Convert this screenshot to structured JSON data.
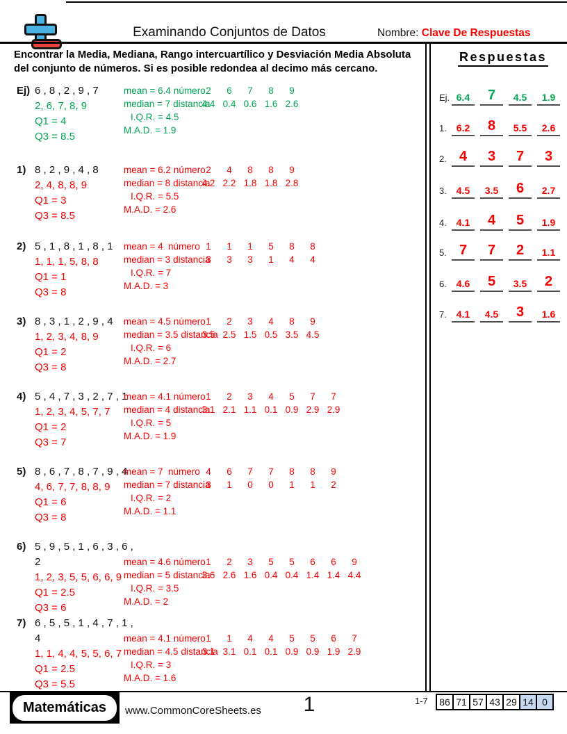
{
  "header": {
    "title": "Examinando Conjuntos de Datos",
    "name_label": "Nombre:",
    "name_value": "Clave De Respuestas"
  },
  "instructions": "Encontrar la Media, Mediana, Rango intercuartílico y Desviación Media Absoluta del conjunto de números. Si es posible redondea al decimo más cercano.",
  "colors": {
    "example_green": "#00a651",
    "answer_red": "#f60000",
    "score_highlight_blue": "#c6d9f1"
  },
  "answers_panel": {
    "title": "Respuestas",
    "rows": [
      {
        "label": "Ej.",
        "values": [
          "6.4",
          "7",
          "4.5",
          "1.9"
        ]
      },
      {
        "label": "1.",
        "values": [
          "6.2",
          "8",
          "5.5",
          "2.6"
        ]
      },
      {
        "label": "2.",
        "values": [
          "4",
          "3",
          "7",
          "3"
        ]
      },
      {
        "label": "3.",
        "values": [
          "4.5",
          "3.5",
          "6",
          "2.7"
        ]
      },
      {
        "label": "4.",
        "values": [
          "4.1",
          "4",
          "5",
          "1.9"
        ]
      },
      {
        "label": "5.",
        "values": [
          "7",
          "7",
          "2",
          "1.1"
        ]
      },
      {
        "label": "6.",
        "values": [
          "4.6",
          "5",
          "3.5",
          "2"
        ]
      },
      {
        "label": "7.",
        "values": [
          "4.1",
          "4.5",
          "3",
          "1.6"
        ]
      }
    ]
  },
  "problems": [
    {
      "label": "Ej)",
      "dataset": "6 , 8 , 2 , 9 , 7",
      "dataset2": "",
      "sorted": "2, 6, 7, 8, 9",
      "q1": "Q1 = 4",
      "q3": "Q3 = 8.5",
      "mean": "mean = 6.4",
      "median": "median = 7",
      "numero_label": "número",
      "distancia_label": "distancia",
      "numbers": [
        "2",
        "6",
        "7",
        "8",
        "9"
      ],
      "distances": [
        "4.4",
        "0.4",
        "0.6",
        "1.6",
        "2.6"
      ],
      "iqr": "I.Q.R. = 4.5",
      "mad": "M.A.D. = 1.9"
    },
    {
      "label": "1)",
      "dataset": "8 , 2 , 9 , 4 , 8",
      "dataset2": "",
      "sorted": "2, 4, 8, 8, 9",
      "q1": "Q1 = 3",
      "q3": "Q3 = 8.5",
      "mean": "mean = 6.2",
      "median": "median = 8",
      "numero_label": "número",
      "distancia_label": "distancia",
      "numbers": [
        "2",
        "4",
        "8",
        "8",
        "9"
      ],
      "distances": [
        "4.2",
        "2.2",
        "1.8",
        "1.8",
        "2.8"
      ],
      "iqr": "I.Q.R. = 5.5",
      "mad": "M.A.D. = 2.6"
    },
    {
      "label": "2)",
      "dataset": "5 , 1 , 8 , 1 , 8 , 1",
      "dataset2": "",
      "sorted": "1, 1, 1, 5, 8, 8",
      "q1": "Q1 = 1",
      "q3": "Q3 = 8",
      "mean": "mean = 4",
      "median": "median = 3",
      "numero_label": "número",
      "distancia_label": "distancia",
      "numbers": [
        "1",
        "1",
        "1",
        "5",
        "8",
        "8"
      ],
      "distances": [
        "3",
        "3",
        "3",
        "1",
        "4",
        "4"
      ],
      "iqr": "I.Q.R. = 7",
      "mad": "M.A.D. = 3"
    },
    {
      "label": "3)",
      "dataset": "8 , 3 , 1 , 2 , 9 , 4",
      "dataset2": "",
      "sorted": "1, 2, 3, 4, 8, 9",
      "q1": "Q1 = 2",
      "q3": "Q3 = 8",
      "mean": "mean = 4.5",
      "median": "median = 3.5",
      "numero_label": "número",
      "distancia_label": "distancia",
      "numbers": [
        "1",
        "2",
        "3",
        "4",
        "8",
        "9"
      ],
      "distances": [
        "3.5",
        "2.5",
        "1.5",
        "0.5",
        "3.5",
        "4.5"
      ],
      "iqr": "I.Q.R. = 6",
      "mad": "M.A.D. = 2.7"
    },
    {
      "label": "4)",
      "dataset": "5 , 4 , 7 , 3 , 2 , 7 , 1",
      "dataset2": "",
      "sorted": "1, 2, 3, 4, 5, 7, 7",
      "q1": "Q1 = 2",
      "q3": "Q3 = 7",
      "mean": "mean = 4.1",
      "median": "median = 4",
      "numero_label": "número",
      "distancia_label": "distancia",
      "numbers": [
        "1",
        "2",
        "3",
        "4",
        "5",
        "7",
        "7"
      ],
      "distances": [
        "3.1",
        "2.1",
        "1.1",
        "0.1",
        "0.9",
        "2.9",
        "2.9"
      ],
      "iqr": "I.Q.R. = 5",
      "mad": "M.A.D. = 1.9"
    },
    {
      "label": "5)",
      "dataset": "8 , 6 , 7 , 8 , 7 , 9 , 4",
      "dataset2": "",
      "sorted": "4, 6, 7, 7, 8, 8, 9",
      "q1": "Q1 = 6",
      "q3": "Q3 = 8",
      "mean": "mean = 7",
      "median": "median = 7",
      "numero_label": "número",
      "distancia_label": "distancia",
      "numbers": [
        "4",
        "6",
        "7",
        "7",
        "8",
        "8",
        "9"
      ],
      "distances": [
        "3",
        "1",
        "0",
        "0",
        "1",
        "1",
        "2"
      ],
      "iqr": "I.Q.R. = 2",
      "mad": "M.A.D. = 1.1"
    },
    {
      "label": "6)",
      "dataset": "5 , 9 , 5 , 1 , 6 , 3 , 6 ,",
      "dataset2": "2",
      "sorted": "1, 2, 3, 5, 5, 6, 6, 9",
      "q1": "Q1 = 2.5",
      "q3": "Q3 = 6",
      "mean": "mean = 4.6",
      "median": "median = 5",
      "numero_label": "número",
      "distancia_label": "distancia",
      "numbers": [
        "1",
        "2",
        "3",
        "5",
        "5",
        "6",
        "6",
        "9"
      ],
      "distances": [
        "3.6",
        "2.6",
        "1.6",
        "0.4",
        "0.4",
        "1.4",
        "1.4",
        "4.4"
      ],
      "iqr": "I.Q.R. = 3.5",
      "mad": "M.A.D. = 2"
    },
    {
      "label": "7)",
      "dataset": "6 , 5 , 5 , 1 , 4 , 7 , 1 ,",
      "dataset2": "4",
      "sorted": "1, 1, 4, 4, 5, 5, 6, 7",
      "q1": "Q1 = 2.5",
      "q3": "Q3 = 5.5",
      "mean": "mean = 4.1",
      "median": "median = 4.5",
      "numero_label": "número",
      "distancia_label": "distancia",
      "numbers": [
        "1",
        "1",
        "4",
        "4",
        "5",
        "5",
        "6",
        "7"
      ],
      "distances": [
        "3.1",
        "3.1",
        "0.1",
        "0.1",
        "0.9",
        "0.9",
        "1.9",
        "2.9"
      ],
      "iqr": "I.Q.R. = 3",
      "mad": "M.A.D. = 1.6"
    }
  ],
  "footer": {
    "brand": "Matemáticas",
    "site": "www.CommonCoreSheets.es",
    "page": "1",
    "score_label": "1-7",
    "scores": [
      "86",
      "71",
      "57",
      "43",
      "29",
      "14",
      "0"
    ]
  }
}
